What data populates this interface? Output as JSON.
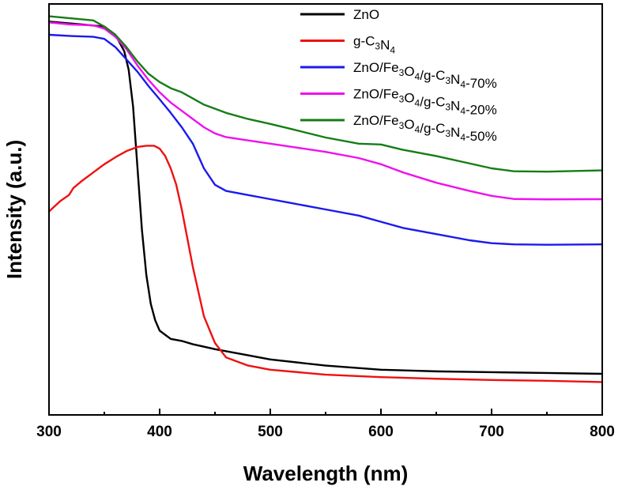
{
  "chart_data": {
    "type": "line",
    "title": "",
    "xlabel": "Wavelength (nm)",
    "ylabel": "Intensity (a.u.)",
    "xlim": [
      300,
      800
    ],
    "ylim": [
      0,
      1
    ],
    "xticks": [
      300,
      400,
      500,
      600,
      700,
      800
    ],
    "xtick_labels": [
      "300",
      "400",
      "500",
      "600",
      "700",
      "800"
    ],
    "y_tick_labels_shown": false,
    "grid": false,
    "legend_position": "top-right",
    "series": [
      {
        "name": "ZnO",
        "name_parts": [
          [
            "ZnO",
            false
          ]
        ],
        "color": "#000000",
        "x": [
          300,
          330,
          350,
          360,
          368,
          372,
          376,
          380,
          384,
          388,
          392,
          396,
          400,
          405,
          410,
          420,
          430,
          450,
          480,
          500,
          550,
          600,
          650,
          700,
          750,
          800
        ],
        "y": [
          0.957,
          0.95,
          0.945,
          0.925,
          0.885,
          0.84,
          0.75,
          0.6,
          0.45,
          0.34,
          0.27,
          0.23,
          0.205,
          0.195,
          0.185,
          0.18,
          0.172,
          0.16,
          0.145,
          0.135,
          0.12,
          0.11,
          0.106,
          0.104,
          0.102,
          0.1
        ]
      },
      {
        "name": "g-C3N4",
        "name_parts": [
          [
            "g-C",
            false
          ],
          [
            "3",
            true
          ],
          [
            "N",
            false
          ],
          [
            "4",
            true
          ]
        ],
        "color": "#ee1111",
        "x": [
          300,
          310,
          318,
          322,
          330,
          340,
          350,
          360,
          370,
          380,
          388,
          395,
          400,
          405,
          410,
          415,
          420,
          425,
          430,
          435,
          440,
          450,
          460,
          480,
          500,
          550,
          600,
          650,
          700,
          750,
          800
        ],
        "y": [
          0.495,
          0.52,
          0.535,
          0.552,
          0.57,
          0.59,
          0.61,
          0.627,
          0.642,
          0.652,
          0.655,
          0.655,
          0.648,
          0.63,
          0.6,
          0.56,
          0.5,
          0.43,
          0.36,
          0.3,
          0.24,
          0.175,
          0.14,
          0.12,
          0.11,
          0.098,
          0.092,
          0.088,
          0.085,
          0.083,
          0.08
        ]
      },
      {
        "name": "ZnO/Fe3O4/g-C3N4-70%",
        "name_parts": [
          [
            "ZnO/Fe",
            false
          ],
          [
            "3",
            true
          ],
          [
            "O",
            false
          ],
          [
            "4",
            true
          ],
          [
            "/g-C",
            false
          ],
          [
            "3",
            true
          ],
          [
            "N",
            false
          ],
          [
            "4",
            true
          ],
          [
            "-70%",
            false
          ]
        ],
        "color": "#1a1aee",
        "x": [
          300,
          320,
          340,
          350,
          360,
          370,
          380,
          390,
          400,
          410,
          420,
          430,
          440,
          450,
          460,
          480,
          500,
          520,
          550,
          580,
          600,
          620,
          650,
          680,
          700,
          720,
          750,
          800
        ],
        "y": [
          0.925,
          0.922,
          0.92,
          0.915,
          0.895,
          0.865,
          0.835,
          0.8,
          0.768,
          0.735,
          0.7,
          0.66,
          0.6,
          0.56,
          0.545,
          0.535,
          0.525,
          0.515,
          0.5,
          0.485,
          0.47,
          0.455,
          0.44,
          0.425,
          0.418,
          0.415,
          0.414,
          0.415
        ]
      },
      {
        "name": "ZnO/Fe3O4/g-C3N4-20%",
        "name_parts": [
          [
            "ZnO/Fe",
            false
          ],
          [
            "3",
            true
          ],
          [
            "O",
            false
          ],
          [
            "4",
            true
          ],
          [
            "/g-C",
            false
          ],
          [
            "3",
            true
          ],
          [
            "N",
            false
          ],
          [
            "4",
            true
          ],
          [
            "-20%",
            false
          ]
        ],
        "color": "#ee11ee",
        "x": [
          300,
          320,
          340,
          350,
          360,
          370,
          380,
          390,
          400,
          410,
          420,
          430,
          440,
          450,
          460,
          480,
          500,
          520,
          550,
          580,
          600,
          620,
          650,
          680,
          700,
          720,
          750,
          800
        ],
        "y": [
          0.955,
          0.95,
          0.948,
          0.94,
          0.92,
          0.89,
          0.85,
          0.815,
          0.785,
          0.76,
          0.74,
          0.72,
          0.7,
          0.685,
          0.676,
          0.668,
          0.66,
          0.652,
          0.64,
          0.625,
          0.61,
          0.59,
          0.565,
          0.545,
          0.533,
          0.5255,
          0.5245,
          0.525
        ]
      },
      {
        "name": "ZnO/Fe3O4/g-C3N4-50%",
        "name_parts": [
          [
            "ZnO/Fe",
            false
          ],
          [
            "3",
            true
          ],
          [
            "O",
            false
          ],
          [
            "4",
            true
          ],
          [
            "/g-C",
            false
          ],
          [
            "3",
            true
          ],
          [
            "N",
            false
          ],
          [
            "4",
            true
          ],
          [
            "-50%",
            false
          ]
        ],
        "color": "#167d16",
        "x": [
          300,
          320,
          340,
          350,
          360,
          370,
          380,
          390,
          400,
          410,
          420,
          430,
          440,
          460,
          480,
          500,
          520,
          550,
          580,
          600,
          620,
          650,
          680,
          700,
          720,
          750,
          800
        ],
        "y": [
          0.97,
          0.965,
          0.96,
          0.945,
          0.925,
          0.895,
          0.86,
          0.83,
          0.81,
          0.795,
          0.785,
          0.77,
          0.755,
          0.735,
          0.72,
          0.708,
          0.695,
          0.675,
          0.66,
          0.658,
          0.645,
          0.63,
          0.612,
          0.6,
          0.593,
          0.592,
          0.595
        ]
      }
    ]
  }
}
